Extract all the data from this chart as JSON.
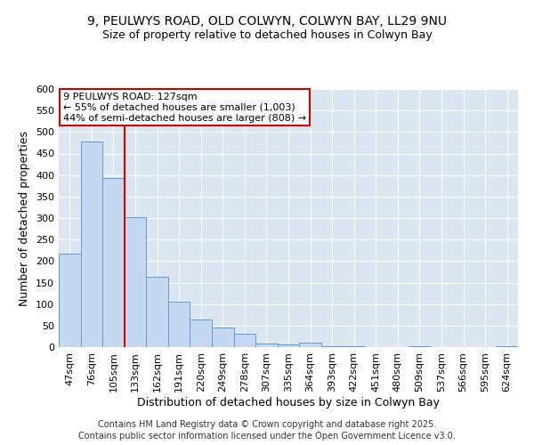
{
  "title_line1": "9, PEULWYS ROAD, OLD COLWYN, COLWYN BAY, LL29 9NU",
  "title_line2": "Size of property relative to detached houses in Colwyn Bay",
  "xlabel": "Distribution of detached houses by size in Colwyn Bay",
  "ylabel": "Number of detached properties",
  "categories": [
    "47sqm",
    "76sqm",
    "105sqm",
    "133sqm",
    "162sqm",
    "191sqm",
    "220sqm",
    "249sqm",
    "278sqm",
    "307sqm",
    "335sqm",
    "364sqm",
    "393sqm",
    "422sqm",
    "451sqm",
    "480sqm",
    "509sqm",
    "537sqm",
    "566sqm",
    "595sqm",
    "624sqm"
  ],
  "values": [
    218,
    478,
    393,
    302,
    163,
    105,
    65,
    46,
    31,
    9,
    7,
    10,
    3,
    2,
    1,
    0,
    3,
    0,
    1,
    0,
    3
  ],
  "bar_color": "#c5d8f0",
  "bar_edge_color": "#5b9bd5",
  "vline_x": 2.5,
  "vline_color": "#dd0000",
  "annotation_line1": "9 PEULWYS ROAD: 127sqm",
  "annotation_line2": "← 55% of detached houses are smaller (1,003)",
  "annotation_line3": "44% of semi-detached houses are larger (808) →",
  "annotation_box_edge": "#cc0000",
  "ylim": [
    0,
    600
  ],
  "yticks": [
    0,
    50,
    100,
    150,
    200,
    250,
    300,
    350,
    400,
    450,
    500,
    550,
    600
  ],
  "footer_line1": "Contains HM Land Registry data © Crown copyright and database right 2025.",
  "footer_line2": "Contains public sector information licensed under the Open Government Licence v3.0.",
  "plot_bg_color": "#dce6f1",
  "grid_color": "#ffffff",
  "title_fontsize": 10,
  "subtitle_fontsize": 9,
  "axis_label_fontsize": 9,
  "tick_fontsize": 8,
  "annotation_fontsize": 8,
  "footer_fontsize": 7
}
